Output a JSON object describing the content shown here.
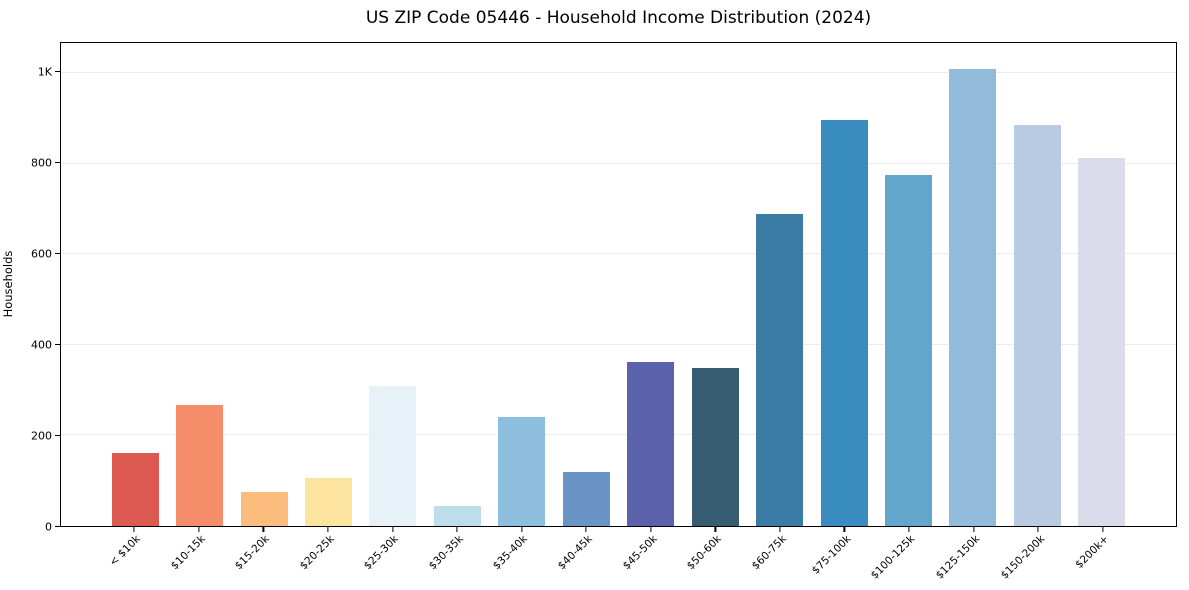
{
  "chart_data": {
    "type": "bar",
    "title": "US ZIP Code 05446 - Household Income Distribution (2024)",
    "xlabel": "",
    "ylabel": "Households",
    "categories": [
      "< $10k",
      "$10-15k",
      "$15-20k",
      "$20-25k",
      "$25-30k",
      "$30-35k",
      "$35-40k",
      "$40-45k",
      "$45-50k",
      "$50-60k",
      "$60-75k",
      "$75-100k",
      "$100-125k",
      "$125-150k",
      "$150-200k",
      "$200k+"
    ],
    "values": [
      162,
      268,
      75,
      105,
      308,
      44,
      240,
      119,
      363,
      348,
      688,
      897,
      774,
      1009,
      884,
      813
    ],
    "bar_colors": [
      "#dc5a52",
      "#f68d6a",
      "#fbbc7e",
      "#fde49e",
      "#e7f2f8",
      "#bcdeea",
      "#8ebedd",
      "#6b94c6",
      "#5c61ab",
      "#365d72",
      "#3b7ca5",
      "#388cc0",
      "#62a6cc",
      "#92badb",
      "#b8cbe2",
      "#dbdceb"
    ],
    "yticks": [
      {
        "value": 0,
        "label": "0"
      },
      {
        "value": 200,
        "label": "200"
      },
      {
        "value": 400,
        "label": "400"
      },
      {
        "value": 600,
        "label": "600"
      },
      {
        "value": 800,
        "label": "800"
      },
      {
        "value": 1000,
        "label": "1K"
      }
    ],
    "ylim": [
      0,
      1066
    ],
    "grid": "horizontal",
    "grid_color": "#ececec",
    "legend_position": "none",
    "background": "#ffffff",
    "axis_color": "#000000"
  }
}
